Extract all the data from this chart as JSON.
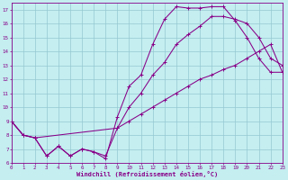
{
  "xlabel": "Windchill (Refroidissement éolien,°C)",
  "bg_color": "#c4eef0",
  "grid_color": "#96c8d2",
  "line_color": "#880088",
  "xlim": [
    0,
    23
  ],
  "ylim": [
    6,
    17.5
  ],
  "xticks": [
    0,
    1,
    2,
    3,
    4,
    5,
    6,
    7,
    8,
    9,
    10,
    11,
    12,
    13,
    14,
    15,
    16,
    17,
    18,
    19,
    20,
    21,
    22,
    23
  ],
  "yticks": [
    6,
    7,
    8,
    9,
    10,
    11,
    12,
    13,
    14,
    15,
    16,
    17
  ],
  "line1_x": [
    0,
    1,
    2,
    3,
    4,
    5,
    6,
    7,
    8,
    9,
    10,
    11,
    12,
    13,
    14,
    15,
    16,
    17,
    18,
    19,
    20,
    21,
    22,
    23
  ],
  "line1_y": [
    9.0,
    8.0,
    7.8,
    6.5,
    7.2,
    6.5,
    7.0,
    6.8,
    6.3,
    9.3,
    11.5,
    12.3,
    14.5,
    16.3,
    17.2,
    17.1,
    17.1,
    17.2,
    17.2,
    16.2,
    15.0,
    13.5,
    12.5,
    12.5
  ],
  "line2_x": [
    0,
    1,
    2,
    3,
    4,
    5,
    6,
    7,
    8,
    9,
    10,
    11,
    12,
    13,
    14,
    15,
    16,
    17,
    18,
    19,
    20,
    21,
    22,
    23
  ],
  "line2_y": [
    9.0,
    8.0,
    7.8,
    6.5,
    7.2,
    6.5,
    7.0,
    6.8,
    6.5,
    8.5,
    10.0,
    11.0,
    12.3,
    13.2,
    14.5,
    15.2,
    15.8,
    16.5,
    16.5,
    16.3,
    16.0,
    15.0,
    13.5,
    13.0
  ],
  "line3_x": [
    0,
    1,
    2,
    9,
    10,
    11,
    12,
    13,
    14,
    15,
    16,
    17,
    18,
    19,
    20,
    21,
    22,
    23
  ],
  "line3_y": [
    9.0,
    8.0,
    7.8,
    8.5,
    9.0,
    9.5,
    10.0,
    10.5,
    11.0,
    11.5,
    12.0,
    12.3,
    12.7,
    13.0,
    13.5,
    14.0,
    14.5,
    12.5
  ]
}
